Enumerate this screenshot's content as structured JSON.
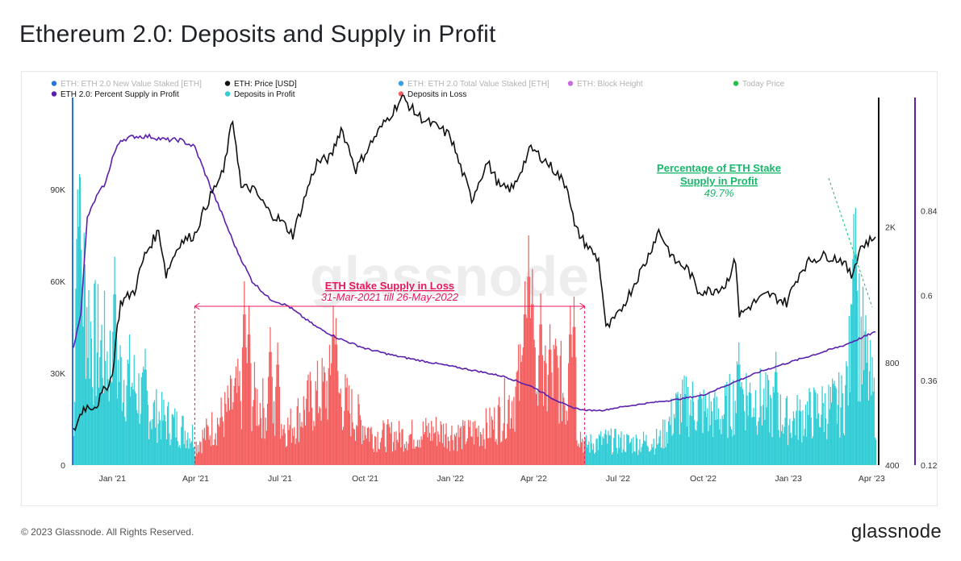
{
  "page": {
    "title": "Ethereum 2.0: Deposits and Supply in Profit",
    "footer_copyright": "© 2023 Glassnode. All Rights Reserved.",
    "footer_logo": "glassnode",
    "watermark": "glassnode"
  },
  "colors": {
    "price": "#111111",
    "percent_supply": "#5b1fae",
    "deposits_profit": "#33cdd6",
    "deposits_loss": "#f46161",
    "new_value_staked": "#2479d4",
    "total_value_staked": "#3aa0e8",
    "block_height": "#c96ae0",
    "today_price": "#22c245",
    "annotation_loss": "#e8175d",
    "annotation_profit": "#16b86a"
  },
  "chart_data": {
    "type": "bar",
    "x_range": [
      "2020-11-20",
      "2023-04-05"
    ],
    "x_ticks": [
      {
        "date": "2021-01-01",
        "label": "Jan '21"
      },
      {
        "date": "2021-04-01",
        "label": "Apr '21"
      },
      {
        "date": "2021-07-01",
        "label": "Jul '21"
      },
      {
        "date": "2021-10-01",
        "label": "Oct '21"
      },
      {
        "date": "2022-01-01",
        "label": "Jan '22"
      },
      {
        "date": "2022-04-01",
        "label": "Apr '22"
      },
      {
        "date": "2022-07-01",
        "label": "Jul '22"
      },
      {
        "date": "2022-10-01",
        "label": "Oct '22"
      },
      {
        "date": "2023-01-01",
        "label": "Jan '23"
      },
      {
        "date": "2023-04-01",
        "label": "Apr '23"
      }
    ],
    "axes": {
      "left": {
        "ylim": [
          0,
          120000
        ],
        "ticks": [
          {
            "v": 0,
            "label": "0"
          },
          {
            "v": 30000,
            "label": "30K"
          },
          {
            "v": 60000,
            "label": "60K"
          },
          {
            "v": 90000,
            "label": "90K"
          }
        ]
      },
      "price": {
        "scale": "log",
        "ylim": [
          400,
          4800
        ],
        "ticks": [
          {
            "v": 400,
            "label": "400"
          },
          {
            "v": 800,
            "label": "800"
          },
          {
            "v": 2000,
            "label": "2K"
          }
        ]
      },
      "percent": {
        "ylim": [
          0.12,
          1.16
        ],
        "ticks": [
          {
            "v": 0.12,
            "label": "0.12"
          },
          {
            "v": 0.36,
            "label": "0.36"
          },
          {
            "v": 0.6,
            "label": "0.6"
          },
          {
            "v": 0.84,
            "label": "0.84"
          }
        ]
      }
    },
    "legend": {
      "placement": "top-left",
      "items": [
        {
          "label": "ETH: ETH 2.0 New Value Staked [ETH]",
          "color_key": "new_value_staked",
          "muted": true
        },
        {
          "label": "ETH: Price [USD]",
          "color_key": "price",
          "muted": false
        },
        {
          "label": "ETH: ETH 2.0 Total Value Staked [ETH]",
          "color_key": "total_value_staked",
          "muted": true
        },
        {
          "label": "ETH: Block Height",
          "color_key": "block_height",
          "muted": true
        },
        {
          "label": "Today Price",
          "color_key": "today_price",
          "muted": true
        },
        {
          "label": "ETH 2.0: Percent Supply in Profit",
          "color_key": "percent_supply",
          "muted": false
        },
        {
          "label": "Deposits in Profit",
          "color_key": "deposits_profit",
          "muted": false
        },
        {
          "label": "Deposits in Loss",
          "color_key": "deposits_loss",
          "muted": false
        }
      ]
    },
    "loss_period": {
      "start": "2021-03-31",
      "end": "2022-05-26"
    },
    "annotations": {
      "loss_title": "ETH Stake Supply in Loss",
      "loss_subtitle": "31-Mar-2021 till 26-May-2022",
      "profit_title_1": "Percentage of ETH Stake",
      "profit_title_2": "Supply in Profit",
      "profit_value": "49.7%"
    },
    "series": [
      {
        "name": "ETH: Price [USD]",
        "kind": "line",
        "axis": "price",
        "points": [
          [
            "2020-11-20",
            500
          ],
          [
            "2020-12-01",
            590
          ],
          [
            "2020-12-15",
            600
          ],
          [
            "2021-01-01",
            730
          ],
          [
            "2021-01-10",
            1200
          ],
          [
            "2021-01-25",
            1300
          ],
          [
            "2021-02-05",
            1650
          ],
          [
            "2021-02-20",
            1950
          ],
          [
            "2021-02-28",
            1450
          ],
          [
            "2021-03-15",
            1800
          ],
          [
            "2021-03-31",
            1900
          ],
          [
            "2021-04-15",
            2400
          ],
          [
            "2021-05-01",
            2900
          ],
          [
            "2021-05-11",
            4100
          ],
          [
            "2021-05-20",
            2600
          ],
          [
            "2021-06-01",
            2600
          ],
          [
            "2021-06-20",
            2200
          ],
          [
            "2021-07-01",
            2100
          ],
          [
            "2021-07-15",
            1900
          ],
          [
            "2021-07-25",
            2300
          ],
          [
            "2021-08-10",
            3100
          ],
          [
            "2021-08-25",
            3200
          ],
          [
            "2021-09-05",
            3900
          ],
          [
            "2021-09-21",
            2950
          ],
          [
            "2021-10-01",
            3300
          ],
          [
            "2021-10-15",
            3800
          ],
          [
            "2021-10-29",
            4300
          ],
          [
            "2021-11-10",
            4800
          ],
          [
            "2021-11-25",
            4300
          ],
          [
            "2021-12-05",
            4100
          ],
          [
            "2021-12-20",
            3900
          ],
          [
            "2022-01-01",
            3700
          ],
          [
            "2022-01-10",
            3100
          ],
          [
            "2022-01-24",
            2400
          ],
          [
            "2022-02-10",
            3100
          ],
          [
            "2022-02-24",
            2600
          ],
          [
            "2022-03-10",
            2600
          ],
          [
            "2022-03-29",
            3400
          ],
          [
            "2022-04-10",
            3200
          ],
          [
            "2022-04-25",
            2900
          ],
          [
            "2022-05-08",
            2600
          ],
          [
            "2022-05-15",
            2000
          ],
          [
            "2022-05-26",
            1800
          ],
          [
            "2022-06-10",
            1600
          ],
          [
            "2022-06-18",
            1000
          ],
          [
            "2022-07-01",
            1100
          ],
          [
            "2022-07-15",
            1300
          ],
          [
            "2022-08-01",
            1600
          ],
          [
            "2022-08-14",
            1950
          ],
          [
            "2022-08-30",
            1600
          ],
          [
            "2022-09-15",
            1500
          ],
          [
            "2022-09-25",
            1300
          ],
          [
            "2022-10-10",
            1300
          ],
          [
            "2022-10-25",
            1350
          ],
          [
            "2022-11-05",
            1600
          ],
          [
            "2022-11-09",
            1100
          ],
          [
            "2022-11-25",
            1200
          ],
          [
            "2022-12-10",
            1270
          ],
          [
            "2022-12-30",
            1200
          ],
          [
            "2023-01-15",
            1500
          ],
          [
            "2023-01-25",
            1600
          ],
          [
            "2023-02-10",
            1650
          ],
          [
            "2023-02-28",
            1600
          ],
          [
            "2023-03-10",
            1430
          ],
          [
            "2023-03-20",
            1750
          ],
          [
            "2023-04-05",
            1870
          ]
        ]
      },
      {
        "name": "ETH 2.0: Percent Supply in Profit",
        "kind": "line",
        "axis": "percent",
        "points": [
          [
            "2020-11-20",
            0.45
          ],
          [
            "2020-11-28",
            0.55
          ],
          [
            "2020-12-05",
            0.82
          ],
          [
            "2020-12-15",
            0.88
          ],
          [
            "2020-12-25",
            0.92
          ],
          [
            "2021-01-01",
            0.99
          ],
          [
            "2021-01-10",
            1.04
          ],
          [
            "2021-01-25",
            1.05
          ],
          [
            "2021-02-10",
            1.05
          ],
          [
            "2021-02-28",
            1.04
          ],
          [
            "2021-03-15",
            1.04
          ],
          [
            "2021-03-31",
            1.02
          ],
          [
            "2021-04-15",
            0.92
          ],
          [
            "2021-05-01",
            0.82
          ],
          [
            "2021-05-15",
            0.73
          ],
          [
            "2021-06-01",
            0.64
          ],
          [
            "2021-06-20",
            0.59
          ],
          [
            "2021-07-10",
            0.57
          ],
          [
            "2021-07-25",
            0.54
          ],
          [
            "2021-08-10",
            0.51
          ],
          [
            "2021-09-01",
            0.48
          ],
          [
            "2021-10-01",
            0.45
          ],
          [
            "2021-11-01",
            0.43
          ],
          [
            "2021-12-01",
            0.415
          ],
          [
            "2022-01-01",
            0.4
          ],
          [
            "2022-02-01",
            0.385
          ],
          [
            "2022-03-01",
            0.37
          ],
          [
            "2022-04-01",
            0.34
          ],
          [
            "2022-04-20",
            0.31
          ],
          [
            "2022-05-10",
            0.285
          ],
          [
            "2022-05-26",
            0.275
          ],
          [
            "2022-06-15",
            0.275
          ],
          [
            "2022-07-01",
            0.283
          ],
          [
            "2022-08-01",
            0.295
          ],
          [
            "2022-09-01",
            0.305
          ],
          [
            "2022-10-01",
            0.318
          ],
          [
            "2022-11-01",
            0.352
          ],
          [
            "2022-12-01",
            0.384
          ],
          [
            "2023-01-01",
            0.41
          ],
          [
            "2023-02-01",
            0.435
          ],
          [
            "2023-03-01",
            0.458
          ],
          [
            "2023-04-05",
            0.497
          ]
        ]
      },
      {
        "name": "Deposits in Profit",
        "kind": "bar",
        "axis": "left",
        "envelope": [
          [
            "2020-11-20",
            12000
          ],
          [
            "2020-11-26",
            85000
          ],
          [
            "2020-12-01",
            72000
          ],
          [
            "2020-12-10",
            50000
          ],
          [
            "2020-12-20",
            48000
          ],
          [
            "2021-01-01",
            40000
          ],
          [
            "2021-01-20",
            35000
          ],
          [
            "2021-02-10",
            22000
          ],
          [
            "2021-03-01",
            18000
          ],
          [
            "2021-03-30",
            12000
          ],
          [
            "2022-05-26",
            8000
          ],
          [
            "2022-06-15",
            10000
          ],
          [
            "2022-07-15",
            9000
          ],
          [
            "2022-08-15",
            10000
          ],
          [
            "2022-09-01",
            22000
          ],
          [
            "2022-09-15",
            25000
          ],
          [
            "2022-10-01",
            22000
          ],
          [
            "2022-10-20",
            20000
          ],
          [
            "2022-11-10",
            30000
          ],
          [
            "2022-12-01",
            26000
          ],
          [
            "2023-01-01",
            18000
          ],
          [
            "2023-02-01",
            22000
          ],
          [
            "2023-03-01",
            25000
          ],
          [
            "2023-03-15",
            60000
          ],
          [
            "2023-04-05",
            22000
          ]
        ],
        "spikes": [
          [
            "2020-11-24",
            90000
          ],
          [
            "2020-11-26",
            95000
          ],
          [
            "2020-11-28",
            68000
          ],
          [
            "2021-01-03",
            68000
          ],
          [
            "2021-02-05",
            38000
          ],
          [
            "2022-11-08",
            40000
          ],
          [
            "2022-12-18",
            37000
          ],
          [
            "2023-03-12",
            82000
          ],
          [
            "2023-03-14",
            84000
          ]
        ]
      },
      {
        "name": "Deposits in Loss",
        "kind": "bar",
        "axis": "left",
        "envelope": [
          [
            "2021-03-31",
            8000
          ],
          [
            "2021-04-15",
            14000
          ],
          [
            "2021-05-01",
            20000
          ],
          [
            "2021-05-15",
            28000
          ],
          [
            "2021-06-01",
            28000
          ],
          [
            "2021-06-20",
            20000
          ],
          [
            "2021-07-10",
            15000
          ],
          [
            "2021-08-01",
            25000
          ],
          [
            "2021-08-25",
            33000
          ],
          [
            "2021-09-15",
            22000
          ],
          [
            "2021-10-10",
            12000
          ],
          [
            "2021-11-15",
            12000
          ],
          [
            "2021-12-15",
            14000
          ],
          [
            "2022-01-15",
            12000
          ],
          [
            "2022-02-15",
            16000
          ],
          [
            "2022-03-10",
            28000
          ],
          [
            "2022-03-25",
            42000
          ],
          [
            "2022-04-10",
            30000
          ],
          [
            "2022-04-25",
            38000
          ],
          [
            "2022-05-10",
            22000
          ],
          [
            "2022-05-26",
            8000
          ]
        ],
        "spikes": [
          [
            "2021-05-23",
            60000
          ],
          [
            "2021-05-28",
            52000
          ],
          [
            "2021-06-20",
            45000
          ],
          [
            "2021-06-28",
            40000
          ],
          [
            "2021-08-27",
            52000
          ],
          [
            "2021-08-30",
            48000
          ],
          [
            "2022-03-22",
            60000
          ],
          [
            "2022-03-26",
            75000
          ],
          [
            "2022-03-30",
            64000
          ],
          [
            "2022-04-08",
            56000
          ],
          [
            "2022-04-18",
            46000
          ],
          [
            "2022-05-10",
            52000
          ],
          [
            "2022-05-14",
            55000
          ]
        ]
      }
    ]
  }
}
